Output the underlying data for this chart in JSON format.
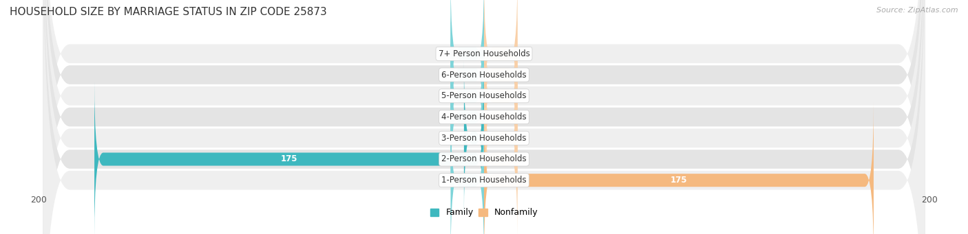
{
  "title": "HOUSEHOLD SIZE BY MARRIAGE STATUS IN ZIP CODE 25873",
  "source": "Source: ZipAtlas.com",
  "categories": [
    "7+ Person Households",
    "6-Person Households",
    "5-Person Households",
    "4-Person Households",
    "3-Person Households",
    "2-Person Households",
    "1-Person Households"
  ],
  "family_values": [
    0,
    0,
    0,
    0,
    9,
    175,
    0
  ],
  "nonfamily_values": [
    0,
    0,
    0,
    0,
    0,
    0,
    175
  ],
  "family_color": "#3eb8bf",
  "nonfamily_color": "#f5b97f",
  "family_stub_color": "#7dd4d9",
  "nonfamily_stub_color": "#f9d0a8",
  "xlim": 200,
  "bar_height": 0.62,
  "row_colors": [
    "#efefef",
    "#e4e4e4"
  ],
  "label_fontsize": 8.5,
  "title_fontsize": 11,
  "cat_fontsize": 8.5
}
